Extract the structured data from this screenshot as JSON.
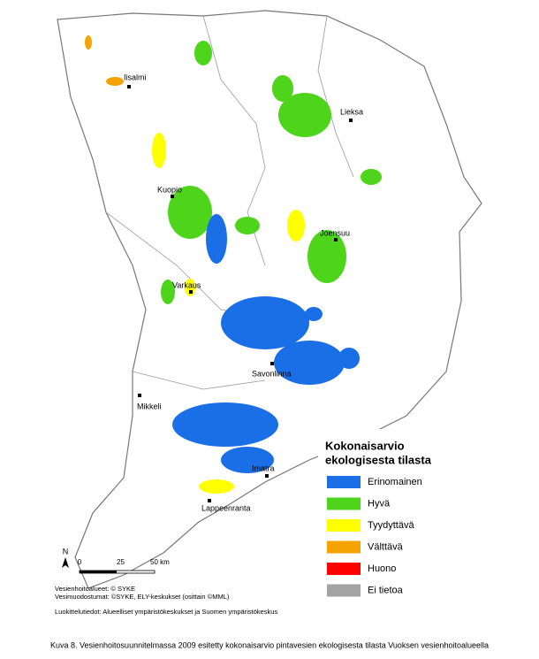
{
  "map": {
    "cities": [
      {
        "label": "Iisalmi"
      },
      {
        "label": "Lieksa"
      },
      {
        "label": "Kuopio"
      },
      {
        "label": "Joensuu"
      },
      {
        "label": "Varkaus"
      },
      {
        "label": "Savonlinna"
      },
      {
        "label": "Mikkeli"
      },
      {
        "label": "Imatra"
      },
      {
        "label": "Lappeenranta"
      }
    ],
    "legend": {
      "title_lines": [
        "Kokonaisarvio",
        "ekologisesta tilasta"
      ],
      "items": [
        {
          "label": "Erinomainen",
          "color": "#1a6fe6"
        },
        {
          "label": "Hyvä",
          "color": "#4fd41c"
        },
        {
          "label": "Tyydyttävä",
          "color": "#ffff00"
        },
        {
          "label": "Välttävä",
          "color": "#f5a300"
        },
        {
          "label": "Huono",
          "color": "#ff0000"
        },
        {
          "label": "Ei tietoa",
          "color": "#a3a3a3"
        }
      ]
    },
    "north": "N",
    "scale": [
      "0",
      "25",
      "50 km"
    ],
    "credits": [
      "Vesienhoitoalueet: © SYKE",
      "Vesimuodostumat: ©SYKE, ELY-keskukset (osittain ©MML)",
      "Luokittelutiedot: Alueelliset ympäristökeskukset ja Suomen ympäristökeskus"
    ],
    "caption": "Kuva 8. Vesienhoitosuunnitelmassa 2009 esitetty kokonaisarvio pintavesien ekologisesta tilasta Vuoksen vesienhoitoalueella"
  }
}
